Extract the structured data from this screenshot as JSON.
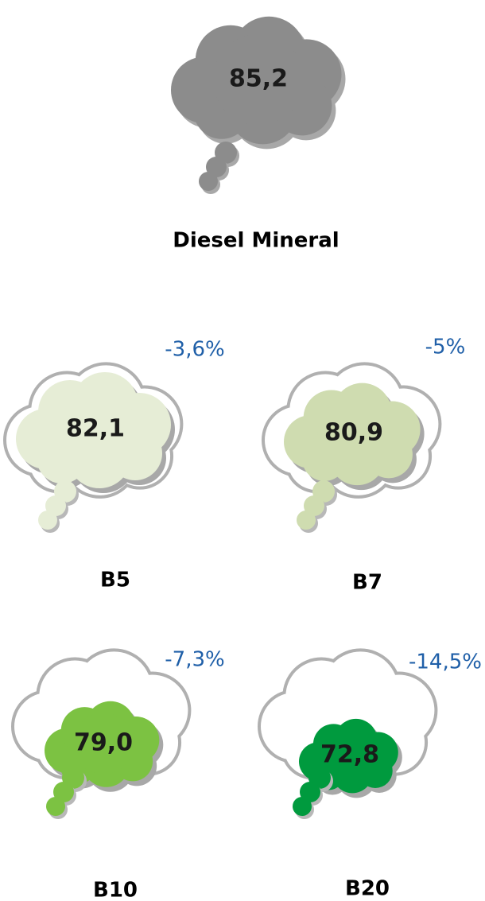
{
  "main": {
    "label": "Diesel Mineral",
    "value": "85,2",
    "color": "#8c8c8c"
  },
  "items": [
    {
      "label": "B5",
      "value": "82,1",
      "change": "-3,6%",
      "color": "#e6edd6"
    },
    {
      "label": "B7",
      "value": "80,9",
      "change": "-5%",
      "color": "#cfdcb0"
    },
    {
      "label": "B10",
      "value": "79,0",
      "change": "-7,3%",
      "color": "#7cc242"
    },
    {
      "label": "B20",
      "value": "72,8",
      "change": "-14,5%",
      "color": "#009a3e"
    }
  ]
}
